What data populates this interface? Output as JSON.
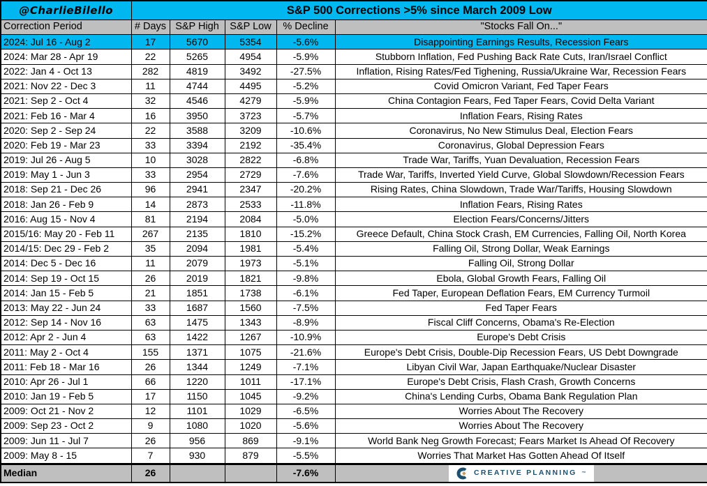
{
  "chart_data": {
    "type": "table",
    "attribution": "@CharlieBilello",
    "title": "S&P 500 Corrections >5% since March 2009 Low",
    "columns": [
      "Correction Period",
      "# Days",
      "S&P High",
      "S&P Low",
      "% Decline",
      "\"Stocks Fall On...\""
    ],
    "highlighted_row": 0,
    "rows": [
      [
        "2024: Jul 16 - Aug 2",
        17,
        5670,
        5354,
        "-5.6%",
        "Disappointing Earnings Results, Recession Fears"
      ],
      [
        "2024: Mar 28 - Apr 19",
        22,
        5265,
        4954,
        "-5.9%",
        "Stubborn Inflation, Fed Pushing Back Rate Cuts, Iran/Israel Conflict"
      ],
      [
        "2022: Jan 4 - Oct 13",
        282,
        4819,
        3492,
        "-27.5%",
        "Inflation, Rising Rates/Fed Tighening, Russia/Ukraine War, Recession Fears"
      ],
      [
        "2021: Nov 22 - Dec 3",
        11,
        4744,
        4495,
        "-5.2%",
        "Covid Omicron Variant, Fed Taper Fears"
      ],
      [
        "2021: Sep 2 - Oct 4",
        32,
        4546,
        4279,
        "-5.9%",
        "China Contagion Fears, Fed Taper Fears, Covid Delta Variant"
      ],
      [
        "2021: Feb 16 - Mar 4",
        16,
        3950,
        3723,
        "-5.7%",
        "Inflation Fears, Rising Rates"
      ],
      [
        "2020: Sep 2 - Sep 24",
        22,
        3588,
        3209,
        "-10.6%",
        "Coronavirus, No New Stimulus Deal, Election Fears"
      ],
      [
        "2020: Feb 19 - Mar 23",
        33,
        3394,
        2192,
        "-35.4%",
        "Coronavirus, Global Depression Fears"
      ],
      [
        "2019: Jul 26 - Aug 5",
        10,
        3028,
        2822,
        "-6.8%",
        "Trade War, Tariffs, Yuan Devaluation, Recession Fears"
      ],
      [
        "2019: May 1 - Jun 3",
        33,
        2954,
        2729,
        "-7.6%",
        "Trade War, Tariffs, Inverted Yield Curve, Global Slowdown/Recession Fears"
      ],
      [
        "2018: Sep 21 - Dec 26",
        96,
        2941,
        2347,
        "-20.2%",
        "Rising Rates, China Slowdown, Trade War/Tariffs, Housing Slowdown"
      ],
      [
        "2018: Jan 26 - Feb 9",
        14,
        2873,
        2533,
        "-11.8%",
        "Inflation Fears, Rising Rates"
      ],
      [
        "2016: Aug 15 - Nov 4",
        81,
        2194,
        2084,
        "-5.0%",
        "Election Fears/Concerns/Jitters"
      ],
      [
        "2015/16: May 20 - Feb 11",
        267,
        2135,
        1810,
        "-15.2%",
        "Greece Default, China Stock Crash, EM Currencies, Falling Oil, North Korea"
      ],
      [
        "2014/15: Dec 29 - Feb 2",
        35,
        2094,
        1981,
        "-5.4%",
        "Falling Oil, Strong Dollar, Weak Earnings"
      ],
      [
        "2014: Dec 5 - Dec 16",
        11,
        2079,
        1973,
        "-5.1%",
        "Falling Oil, Strong Dollar"
      ],
      [
        "2014: Sep 19 - Oct 15",
        26,
        2019,
        1821,
        "-9.8%",
        "Ebola, Global Growth Fears, Falling Oil"
      ],
      [
        "2014: Jan 15 - Feb 5",
        21,
        1851,
        1738,
        "-6.1%",
        "Fed Taper, European Deflation Fears, EM Currency Turmoil"
      ],
      [
        "2013: May 22 - Jun 24",
        33,
        1687,
        1560,
        "-7.5%",
        "Fed Taper Fears"
      ],
      [
        "2012: Sep 14 - Nov 16",
        63,
        1475,
        1343,
        "-8.9%",
        "Fiscal Cliff Concerns, Obama's Re-Election"
      ],
      [
        "2012: Apr 2 - Jun 4",
        63,
        1422,
        1267,
        "-10.9%",
        "Europe's Debt Crisis"
      ],
      [
        "2011: May 2 - Oct 4",
        155,
        1371,
        1075,
        "-21.6%",
        "Europe's Debt Crisis, Double-Dip Recession Fears, US Debt Downgrade"
      ],
      [
        "2011: Feb 18 - Mar 16",
        26,
        1344,
        1249,
        "-7.1%",
        "Libyan Civil War, Japan Earthquake/Nuclear Disaster"
      ],
      [
        "2010: Apr 26 - Jul 1",
        66,
        1220,
        1011,
        "-17.1%",
        "Europe's Debt Crisis, Flash Crash, Growth Concerns"
      ],
      [
        "2010: Jan 19 - Feb 5",
        17,
        1150,
        1045,
        "-9.2%",
        "China's Lending Curbs, Obama Bank Regulation Plan"
      ],
      [
        "2009: Oct 21 - Nov 2",
        12,
        1101,
        1029,
        "-6.5%",
        "Worries About The Recovery"
      ],
      [
        "2009: Sep 23 - Oct 2",
        9,
        1080,
        1020,
        "-5.6%",
        "Worries About The Recovery"
      ],
      [
        "2009: Jun 11 - Jul 7",
        26,
        956,
        869,
        "-9.1%",
        "World Bank Neg Growth Forecast; Fears Market Is Ahead Of Recovery"
      ],
      [
        "2009: May 8 - 15",
        7,
        930,
        879,
        "-5.5%",
        "Worries That Market Has Gotten Ahead Of Itself"
      ]
    ],
    "median": {
      "label": "Median",
      "days": "26",
      "high": "",
      "low": "",
      "decline": "-7.6%"
    }
  },
  "footer": {
    "logo_text": "CREATIVE PLANNING",
    "logo_mark": "™"
  },
  "colors": {
    "highlight_cyan": "#00b7ef",
    "header_gray": "#bfbfbf",
    "logo_navy": "#1d506e",
    "logo_gold": "#c79b5e"
  }
}
